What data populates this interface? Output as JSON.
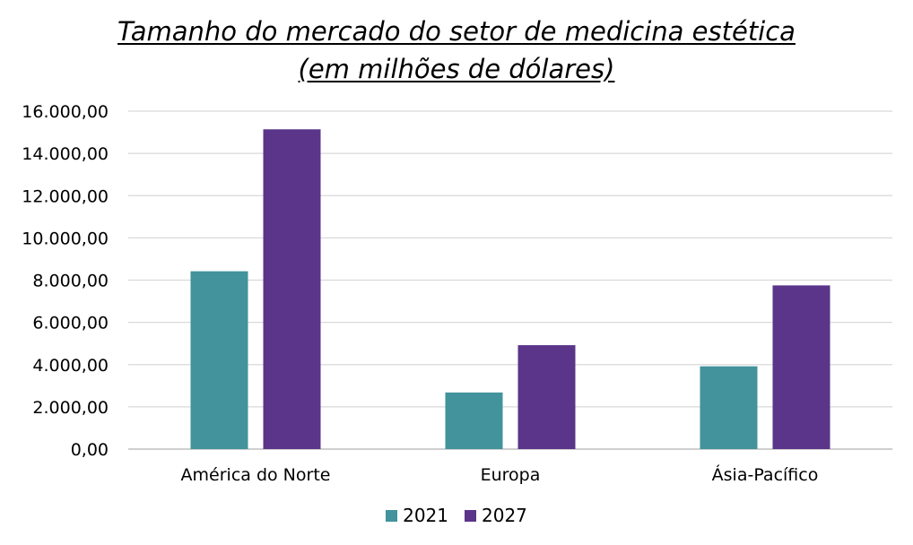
{
  "chart_data": {
    "type": "bar",
    "title_line1": "Tamanho do mercado do setor de medicina estética",
    "title_line2": "(em milhões de dólares)",
    "categories": [
      "América do Norte",
      "Europa",
      "Ásia-Pacífico"
    ],
    "series": [
      {
        "name": "2021",
        "color": "#42939b",
        "values": [
          8420,
          2680,
          3920
        ]
      },
      {
        "name": "2027",
        "color": "#5a3589",
        "values": [
          15140,
          4920,
          7750
        ]
      }
    ],
    "ylim": [
      0,
      16000
    ],
    "yticks": [
      0,
      2000,
      4000,
      6000,
      8000,
      10000,
      12000,
      14000,
      16000
    ],
    "ytick_labels": [
      "0,00",
      "2.000,00",
      "4.000,00",
      "6.000,00",
      "8.000,00",
      "10.000,00",
      "12.000,00",
      "14.000,00",
      "16.000,00"
    ],
    "grid": true,
    "legend_position": "bottom",
    "xlabel": "",
    "ylabel": ""
  }
}
